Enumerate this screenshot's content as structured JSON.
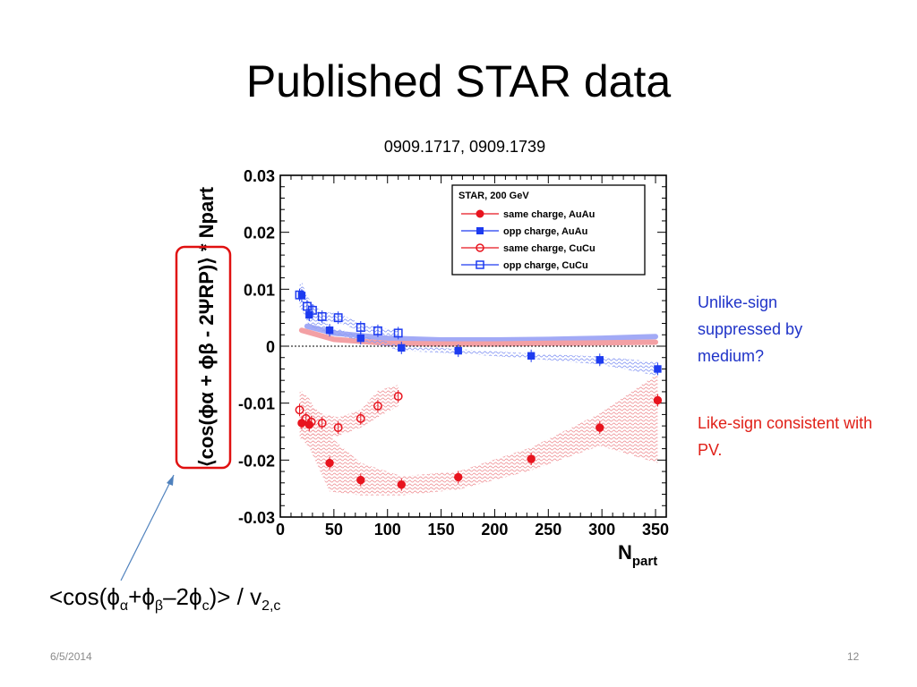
{
  "slide": {
    "title": "Published STAR data",
    "references": "0909.1717, 0909.1739",
    "note_unlike": "Unlike-sign suppressed by medium?",
    "note_like": "Like-sign consistent with PV.",
    "formula": {
      "prefix": "<cos(",
      "phi1": "ϕ",
      "sub1": "α",
      "plus": "+",
      "phi2": "ϕ",
      "sub2": "β",
      "minus": "–2",
      "phi3": "ϕ",
      "sub3": "c",
      "suffix": ")> / v",
      "sub4": "2,c"
    },
    "date": "6/5/2014",
    "page": "12"
  },
  "colors": {
    "red": "#e8141e",
    "blue": "#1d3bf0",
    "pale_red": "#f3a0a4",
    "pale_blue": "#a2aaf6"
  },
  "chart_data": {
    "type": "scatter",
    "xlabel": "N",
    "xlabel_sub": "part",
    "ylabel": "⟨cos(ϕα + ϕβ - 2ΨRP)⟩ * Npart",
    "xlim": [
      0,
      360
    ],
    "ylim": [
      -0.03,
      0.03
    ],
    "xticks": [
      0,
      50,
      100,
      150,
      200,
      250,
      300,
      350
    ],
    "yticks": [
      0.03,
      0.02,
      0.01,
      0,
      -0.01,
      -0.02,
      -0.03
    ],
    "ytick_labels": [
      "0.03",
      "0.02",
      "0.01",
      "0",
      "-0.01",
      "-0.02",
      "-0.03"
    ],
    "legend_title": "STAR, 200 GeV",
    "legend_position": "top-right",
    "series": [
      {
        "name": "same charge, AuAu",
        "marker": "filled-circle",
        "color": "#e8141e",
        "x": [
          20,
          27,
          46,
          75,
          113,
          166,
          234,
          298,
          352
        ],
        "y": [
          -0.0135,
          -0.0138,
          -0.0205,
          -0.0235,
          -0.0243,
          -0.023,
          -0.0198,
          -0.0143,
          -0.0095
        ],
        "band_upper": [
          -0.0078,
          -0.0092,
          -0.0158,
          -0.0205,
          -0.0228,
          -0.022,
          -0.0178,
          -0.0118,
          -0.0048
        ],
        "band_lower": [
          -0.0163,
          -0.0178,
          -0.0255,
          -0.0262,
          -0.0262,
          -0.0252,
          -0.0218,
          -0.0175,
          -0.0205
        ]
      },
      {
        "name": "opp charge, AuAu",
        "marker": "filled-square",
        "color": "#1d3bf0",
        "x": [
          20,
          27,
          46,
          75,
          113,
          166,
          234,
          298,
          352
        ],
        "y": [
          0.0089,
          0.0055,
          0.0028,
          0.0014,
          -0.0003,
          -0.0008,
          -0.0017,
          -0.0024,
          -0.004
        ],
        "band_upper": [
          0.0115,
          0.0075,
          0.0035,
          0.0018,
          0.0002,
          -0.0005,
          -0.0013,
          -0.0018,
          -0.0028
        ],
        "band_lower": [
          0.0065,
          0.0035,
          0.0022,
          0.001,
          -0.0008,
          -0.0013,
          -0.0022,
          -0.0032,
          -0.0052
        ]
      },
      {
        "name": "same charge, CuCu",
        "marker": "open-circle",
        "color": "#e8141e",
        "x": [
          18,
          24,
          29,
          39,
          54,
          75,
          91,
          110
        ],
        "y": [
          -0.0112,
          -0.0127,
          -0.0133,
          -0.0135,
          -0.0143,
          -0.0127,
          -0.0105,
          -0.0088
        ],
        "band_upper": [
          -0.0078,
          -0.0097,
          -0.0105,
          -0.0118,
          -0.0125,
          -0.0112,
          -0.0078,
          -0.0068
        ],
        "band_lower": [
          -0.0162,
          -0.0165,
          -0.0158,
          -0.0163,
          -0.0158,
          -0.0143,
          -0.0125,
          -0.0105
        ]
      },
      {
        "name": "opp charge, CuCu",
        "marker": "open-square",
        "color": "#1d3bf0",
        "x": [
          18,
          25,
          30,
          39,
          54,
          75,
          91,
          110
        ],
        "y": [
          0.009,
          0.007,
          0.0063,
          0.0052,
          0.005,
          0.0033,
          0.0027,
          0.0023
        ],
        "band_upper": [
          0.0112,
          0.0088,
          0.0075,
          0.006,
          0.0058,
          0.004,
          0.0033,
          0.0028
        ],
        "band_lower": [
          0.0068,
          0.0052,
          0.005,
          0.0044,
          0.0042,
          0.0026,
          0.0021,
          0.0018
        ]
      }
    ],
    "background_bands": [
      {
        "color": "#a2aaf6",
        "x": [
          25,
          50,
          100,
          150,
          200,
          250,
          300,
          350
        ],
        "y": [
          0.0035,
          0.0023,
          0.0014,
          0.0011,
          0.0011,
          0.0012,
          0.0014,
          0.0017
        ]
      },
      {
        "color": "#f3a0a4",
        "x": [
          20,
          50,
          100,
          150,
          200,
          250,
          300,
          350
        ],
        "y": [
          0.0028,
          0.0012,
          0.0005,
          0.0004,
          0.0004,
          0.0005,
          0.0006,
          0.0007
        ]
      }
    ]
  }
}
